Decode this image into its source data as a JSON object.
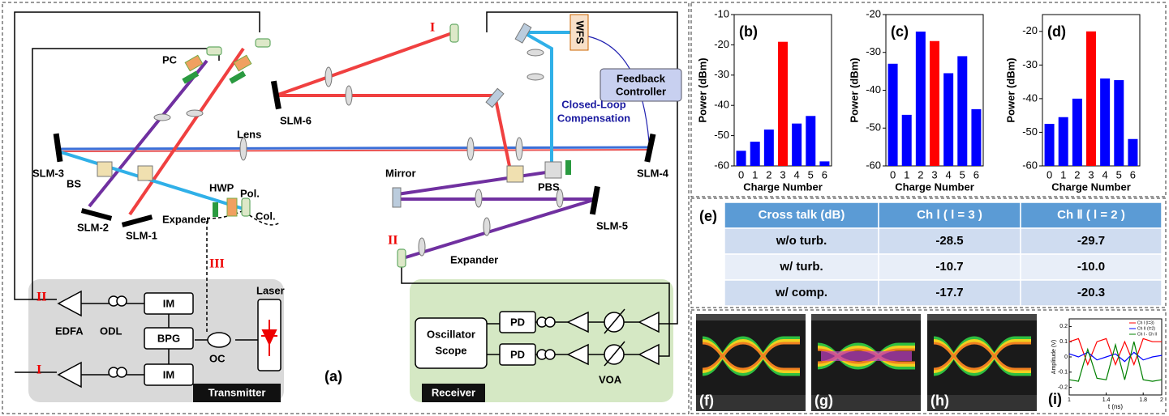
{
  "diagram": {
    "panel_label": "(a)",
    "labels": {
      "pc": "PC",
      "slm6": "SLM-6",
      "lens": "Lens",
      "slm3": "SLM-3",
      "bs": "BS",
      "slm2": "SLM-2",
      "slm1": "SLM-1",
      "hwp": "HWP",
      "pol": "Pol.",
      "col": "Col.",
      "expander_tx": "Expander",
      "beam1": "I",
      "beam2": "II",
      "beam3": "III",
      "mirror": "Mirror",
      "pbs": "PBS",
      "slm5": "SLM-5",
      "expander_rx": "Expander",
      "slm4": "SLM-4",
      "wfs": "WFS",
      "feedback_1": "Feedback",
      "feedback_2": "Controller",
      "closed_loop_1": "Closed-Loop",
      "closed_loop_2": "Compensation",
      "edfa": "EDFA",
      "odl": "ODL",
      "im1": "IM",
      "bpg": "BPG",
      "im2": "IM",
      "oc": "OC",
      "laser": "Laser",
      "transmitter": "Transmitter",
      "scope_1": "Oscillator",
      "scope_2": "Scope",
      "pd1": "PD",
      "pd2": "PD",
      "voa": "VOA",
      "receiver": "Receiver",
      "ch2": "II",
      "ch1": "I"
    }
  },
  "chart_data": [
    {
      "type": "bar",
      "title": "(b)",
      "x_label": "Charge Number",
      "y_label": "Power (dBm)",
      "categories": [
        "0",
        "1",
        "2",
        "3",
        "4",
        "5",
        "6"
      ],
      "values": [
        -55,
        -52,
        -48,
        -19,
        -46,
        -43.5,
        -58.5
      ],
      "colors": [
        "#0000ff",
        "#0000ff",
        "#0000ff",
        "#ff0000",
        "#0000ff",
        "#0000ff",
        "#0000ff"
      ],
      "ylim": [
        -60,
        -10
      ],
      "yticks": [
        -60,
        -50,
        -40,
        -30,
        -20,
        -10
      ]
    },
    {
      "type": "bar",
      "title": "(c)",
      "x_label": "Charge Number",
      "y_label": "Power (dBm)",
      "categories": [
        "0",
        "1",
        "2",
        "3",
        "4",
        "5",
        "6"
      ],
      "values": [
        -33,
        -46.5,
        -24.5,
        -27,
        -35.5,
        -31,
        -45
      ],
      "colors": [
        "#0000ff",
        "#0000ff",
        "#0000ff",
        "#ff0000",
        "#0000ff",
        "#0000ff",
        "#0000ff"
      ],
      "ylim": [
        -60,
        -20
      ],
      "yticks": [
        -60,
        -50,
        -40,
        -30,
        -20
      ]
    },
    {
      "type": "bar",
      "title": "(d)",
      "x_label": "Charge Number",
      "y_label": "Power (dBm)",
      "categories": [
        "0",
        "1",
        "2",
        "3",
        "4",
        "5",
        "6"
      ],
      "values": [
        -47.5,
        -45.5,
        -40,
        -20,
        -34,
        -34.5,
        -52
      ],
      "colors": [
        "#0000ff",
        "#0000ff",
        "#0000ff",
        "#ff0000",
        "#0000ff",
        "#0000ff",
        "#0000ff"
      ],
      "ylim": [
        -60,
        -15
      ],
      "yticks": [
        -60,
        -50,
        -40,
        -30,
        -20
      ]
    },
    {
      "type": "line",
      "title": "(i)",
      "x_label": "t (ns)",
      "y_label": "Amplitude (V)",
      "x": [
        1.0,
        1.1,
        1.2,
        1.3,
        1.4,
        1.5,
        1.6,
        1.7,
        1.8,
        1.9,
        2.0
      ],
      "series": [
        {
          "name": "Ch I (l=3)",
          "color": "#ff0000",
          "values": [
            0.1,
            0.12,
            -0.05,
            0.1,
            0.12,
            -0.05,
            0.1,
            -0.05,
            0.12,
            0.1,
            0.1
          ]
        },
        {
          "name": "Ch II (l=2)",
          "color": "#0000ff",
          "values": [
            0.02,
            0.0,
            0.03,
            -0.02,
            0.0,
            0.02,
            -0.03,
            0.03,
            -0.02,
            0.0,
            0.01
          ]
        },
        {
          "name": "Ch I - Ch II",
          "color": "#008000",
          "values": [
            -0.15,
            -0.16,
            0.05,
            -0.14,
            -0.15,
            0.08,
            -0.15,
            0.1,
            -0.15,
            -0.16,
            -0.15
          ]
        }
      ],
      "xlim": [
        1,
        2
      ],
      "xticks": [
        1,
        1.4,
        1.8,
        2
      ],
      "ylim": [
        -0.25,
        0.25
      ],
      "yticks": [
        -0.2,
        -0.1,
        0,
        0.1,
        0.2
      ]
    }
  ],
  "table": {
    "panel_label": "(e)",
    "header": [
      "Cross talk (dB)",
      "Ch Ⅰ ( l = 3 )",
      "Ch Ⅱ ( l = 2 )"
    ],
    "rows": [
      [
        "w/o turb.",
        "-28.5",
        "-29.7"
      ],
      [
        "w/ turb.",
        "-10.7",
        "-10.0"
      ],
      [
        "w/ comp.",
        "-17.7",
        "-20.3"
      ]
    ]
  },
  "eye_diagrams": {
    "labels": [
      "(f)",
      "(g)",
      "(h)"
    ]
  }
}
